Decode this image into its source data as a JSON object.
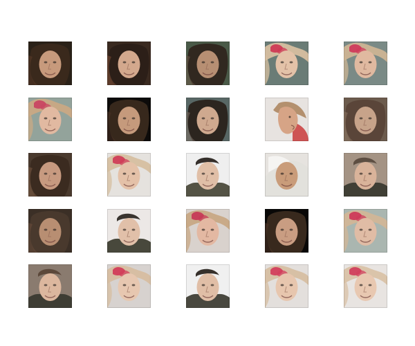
{
  "figure": {
    "rows": 5,
    "cols": 5,
    "tiles": [
      {
        "kind": "dark-long-hair",
        "bg": "#2a2118",
        "hair": "#3b2a1c",
        "skin": "#c79a7c",
        "accent": "#5a3a28"
      },
      {
        "kind": "dark-long-hair",
        "bg": "#3a2a20",
        "hair": "#2b1f18",
        "skin": "#d3a88d",
        "accent": "#7a4a34"
      },
      {
        "kind": "dark-short-hair",
        "bg": "#4a5a48",
        "hair": "#2f261f",
        "skin": "#b78f73",
        "accent": "#6b5a48"
      },
      {
        "kind": "hat-red-flower",
        "bg": "#6a7c76",
        "hair": "#d7bfa0",
        "skin": "#e3c2a8",
        "accent": "#cf3a55"
      },
      {
        "kind": "hat-red-flower",
        "bg": "#7a8a86",
        "hair": "#cdb493",
        "skin": "#e0b9a0",
        "accent": "#d03b5b"
      },
      {
        "kind": "hat-red-flower",
        "bg": "#93a39b",
        "hair": "#c9a984",
        "skin": "#e1b9a1",
        "accent": "#c94662"
      },
      {
        "kind": "dark-long-hair",
        "bg": "#0d0b0a",
        "hair": "#3a2a1e",
        "skin": "#c59a7c",
        "accent": "#4a3224"
      },
      {
        "kind": "dark-short-hair",
        "bg": "#586765",
        "hair": "#2a221b",
        "skin": "#cfa98f",
        "accent": "#7d6d62"
      },
      {
        "kind": "side-profile",
        "bg": "#e7e3e0",
        "hair": "#b08b67",
        "skin": "#d6a486",
        "accent": "#c93b3b"
      },
      {
        "kind": "dark-long-hair",
        "bg": "#6c5b4d",
        "hair": "#5a4538",
        "skin": "#c7a38a",
        "accent": "#8d7563"
      },
      {
        "kind": "dark-long-hair",
        "bg": "#4a3a2e",
        "hair": "#3a2a20",
        "skin": "#c79a80",
        "accent": "#7a5a44"
      },
      {
        "kind": "hat-red-flower",
        "bg": "#e5e2de",
        "hair": "#d6bfa0",
        "skin": "#e4c1a8",
        "accent": "#d03e58"
      },
      {
        "kind": "smiling-man",
        "bg": "#efefef",
        "hair": "#2a2420",
        "skin": "#e0bfa7",
        "accent": "#4b4a3b"
      },
      {
        "kind": "blond-messy",
        "bg": "#e2e1dc",
        "hair": "#e6e3de",
        "skin": "#c99c7a",
        "accent": "#7a5f47"
      },
      {
        "kind": "smiling-man",
        "bg": "#a49384",
        "hair": "#5a4a3e",
        "skin": "#d9b39a",
        "accent": "#3b3a30"
      },
      {
        "kind": "dark-long-hair",
        "bg": "#3b2f26",
        "hair": "#4a3a2d",
        "skin": "#b88e72",
        "accent": "#6b4f3d"
      },
      {
        "kind": "smiling-man",
        "bg": "#ece8e6",
        "hair": "#2f2a25",
        "skin": "#e1c0a9",
        "accent": "#3f3f33"
      },
      {
        "kind": "hat-red-flower",
        "bg": "#d9d2cd",
        "hair": "#c8a884",
        "skin": "#e3b8a2",
        "accent": "#c73a57"
      },
      {
        "kind": "dark-long-hair",
        "bg": "#090807",
        "hair": "#3b2b1f",
        "skin": "#c99d82",
        "accent": "#4f3527"
      },
      {
        "kind": "hat-red-flower",
        "bg": "#aab6b0",
        "hair": "#d1b697",
        "skin": "#e0bca5",
        "accent": "#cd3a59"
      },
      {
        "kind": "smiling-man",
        "bg": "#8a7b6f",
        "hair": "#5a4637",
        "skin": "#dcb79e",
        "accent": "#3a3a30"
      },
      {
        "kind": "hat-red-flower",
        "bg": "#d7d2cf",
        "hair": "#d7bda0",
        "skin": "#e7c7b0",
        "accent": "#d23d5a"
      },
      {
        "kind": "smiling-man",
        "bg": "#f0f0f0",
        "hair": "#2b2520",
        "skin": "#e0bea6",
        "accent": "#3f3e35"
      },
      {
        "kind": "hat-red-flower",
        "bg": "#e3dfdc",
        "hair": "#d6bea1",
        "skin": "#e7c6ae",
        "accent": "#d33f5c"
      },
      {
        "kind": "hat-red-flower",
        "bg": "#e8e4e1",
        "hair": "#d9c2a6",
        "skin": "#e8c8b1",
        "accent": "#d1405c"
      }
    ]
  }
}
